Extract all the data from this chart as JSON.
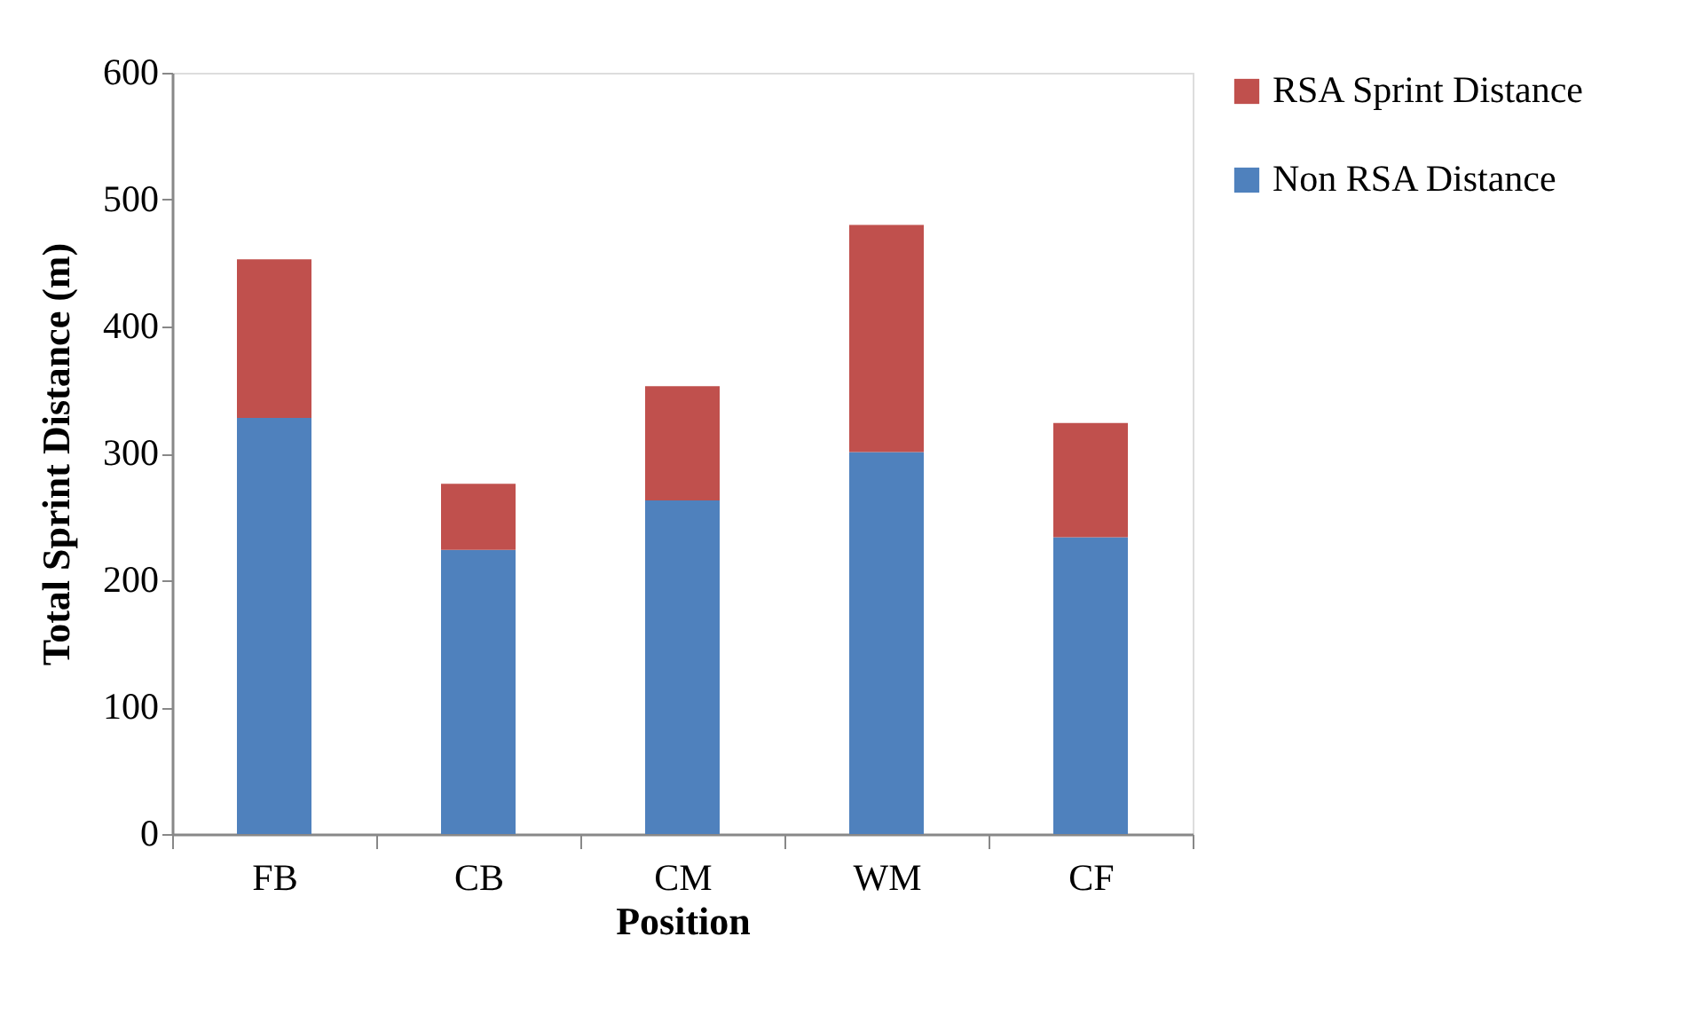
{
  "chart_data": {
    "type": "bar",
    "stacked": true,
    "xlabel": "Position",
    "ylabel": "Total Sprint  Distance (m)",
    "categories": [
      "FB",
      "CB",
      "CM",
      "WM",
      "CF"
    ],
    "series": [
      {
        "name": "Non RSA Distance",
        "color": "#4f81bd",
        "values": [
          328,
          224,
          263,
          301,
          234
        ]
      },
      {
        "name": "RSA Sprint Distance",
        "color": "#c0504d",
        "values": [
          125,
          52,
          90,
          179,
          90
        ]
      }
    ],
    "ylim": [
      0,
      600
    ],
    "yticks": [
      0,
      100,
      200,
      300,
      400,
      500,
      600
    ],
    "grid": false,
    "legend": "right"
  }
}
